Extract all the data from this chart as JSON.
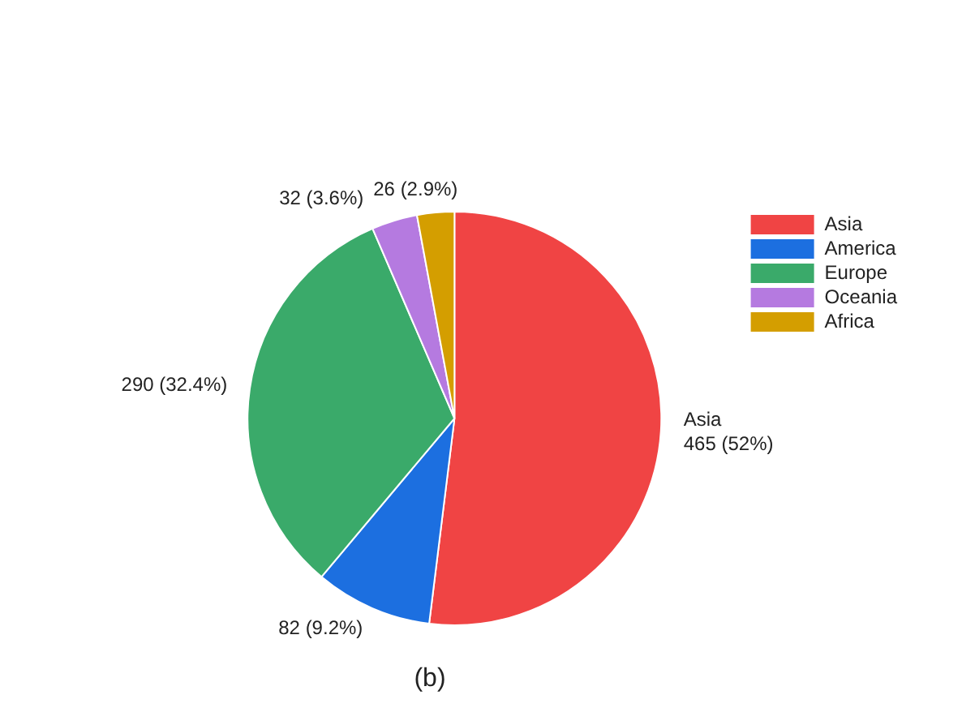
{
  "chart_data": {
    "type": "pie",
    "categories": [
      "Asia",
      "America",
      "Europe",
      "Oceania",
      "Africa"
    ],
    "values": [
      465,
      82,
      290,
      32,
      26
    ],
    "colors": [
      "#f04444",
      "#1c6fe0",
      "#3aaa6a",
      "#b57ae0",
      "#d49e00"
    ],
    "value_labels": [
      "Asia\n465 (52%)",
      "82 (9.2%)",
      "290 (32.4%)",
      "32 (3.6%)",
      "26 (2.9%)"
    ],
    "legend": "top right",
    "annotations": [
      "(b)"
    ]
  }
}
